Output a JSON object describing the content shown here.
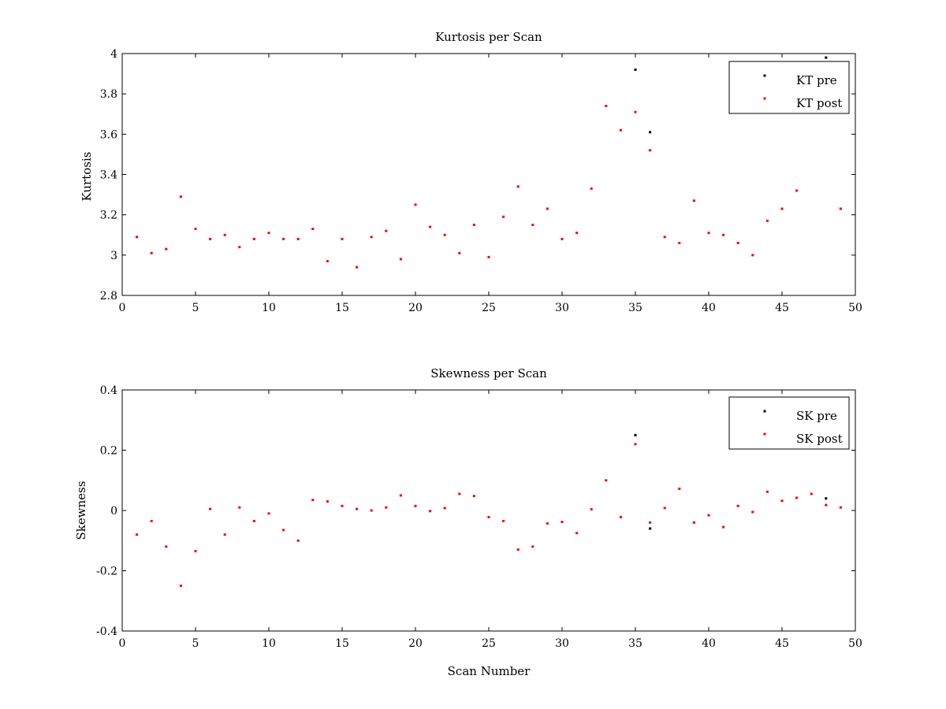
{
  "chart_data": [
    {
      "type": "scatter",
      "title": "Kurtosis per Scan",
      "xlabel": "",
      "ylabel": "Kurtosis",
      "xlim": [
        0,
        50
      ],
      "ylim": [
        2.8,
        4
      ],
      "xticks": [
        0,
        5,
        10,
        15,
        20,
        25,
        30,
        35,
        40,
        45,
        50
      ],
      "yticks": [
        2.8,
        3,
        3.2,
        3.4,
        3.6,
        3.8,
        4
      ],
      "xtick_labels": [
        "0",
        "5",
        "10",
        "15",
        "20",
        "25",
        "30",
        "35",
        "40",
        "45",
        "50"
      ],
      "ytick_labels": [
        "2.8",
        "3",
        "3.2",
        "3.4",
        "3.6",
        "3.8",
        "4"
      ],
      "grid": false,
      "legend_position": "top-right",
      "series": [
        {
          "name": "KT pre",
          "color": "#000000",
          "x": [
            35,
            36,
            48
          ],
          "y": [
            3.92,
            3.61,
            3.98
          ]
        },
        {
          "name": "KT post",
          "color": "#ff0000",
          "x": [
            1,
            2,
            3,
            4,
            5,
            6,
            7,
            8,
            9,
            10,
            11,
            12,
            13,
            14,
            15,
            16,
            17,
            18,
            19,
            20,
            21,
            22,
            23,
            24,
            25,
            26,
            27,
            28,
            29,
            30,
            31,
            32,
            33,
            34,
            35,
            36,
            37,
            38,
            39,
            40,
            41,
            42,
            43,
            44,
            45,
            46,
            49
          ],
          "y": [
            3.09,
            3.01,
            3.03,
            3.29,
            3.13,
            3.08,
            3.1,
            3.04,
            3.08,
            3.11,
            3.08,
            3.08,
            3.13,
            2.97,
            3.08,
            2.94,
            3.09,
            3.12,
            2.98,
            3.25,
            3.14,
            3.1,
            3.01,
            3.15,
            2.99,
            3.19,
            3.34,
            3.15,
            3.23,
            3.08,
            3.11,
            3.33,
            3.74,
            3.62,
            3.71,
            3.52,
            3.09,
            3.06,
            3.27,
            3.11,
            3.1,
            3.06,
            3.0,
            3.17,
            3.23,
            3.32,
            3.23
          ]
        }
      ]
    },
    {
      "type": "scatter",
      "title": "Skewness per Scan",
      "xlabel": "Scan Number",
      "ylabel": "Skewness",
      "xlim": [
        0,
        50
      ],
      "ylim": [
        -0.4,
        0.4
      ],
      "xticks": [
        0,
        5,
        10,
        15,
        20,
        25,
        30,
        35,
        40,
        45,
        50
      ],
      "yticks": [
        -0.4,
        -0.2,
        0,
        0.2,
        0.4
      ],
      "xtick_labels": [
        "0",
        "5",
        "10",
        "15",
        "20",
        "25",
        "30",
        "35",
        "40",
        "45",
        "50"
      ],
      "ytick_labels": [
        "-0.4",
        "-0.2",
        "0",
        "0.2",
        "0.4"
      ],
      "grid": false,
      "legend_position": "top-right",
      "series": [
        {
          "name": "SK pre",
          "color": "#000000",
          "x": [
            35,
            36,
            48
          ],
          "y": [
            0.25,
            -0.06,
            0.04
          ]
        },
        {
          "name": "SK post",
          "color": "#ff0000",
          "x": [
            1,
            2,
            3,
            4,
            5,
            6,
            7,
            8,
            9,
            10,
            11,
            12,
            13,
            14,
            15,
            16,
            17,
            18,
            19,
            20,
            21,
            22,
            23,
            24,
            25,
            26,
            27,
            28,
            29,
            30,
            31,
            32,
            33,
            34,
            35,
            36,
            37,
            38,
            39,
            40,
            41,
            42,
            43,
            44,
            45,
            46,
            47,
            48,
            49
          ],
          "y": [
            -0.08,
            -0.035,
            -0.12,
            -0.25,
            -0.135,
            0.005,
            -0.08,
            0.01,
            -0.035,
            -0.01,
            -0.065,
            -0.1,
            0.035,
            0.03,
            0.015,
            0.005,
            0.0,
            0.01,
            0.05,
            0.015,
            -0.002,
            0.008,
            0.055,
            0.048,
            -0.022,
            -0.035,
            -0.13,
            -0.12,
            -0.043,
            -0.038,
            -0.075,
            0.004,
            0.1,
            -0.022,
            0.22,
            -0.04,
            0.008,
            0.072,
            -0.04,
            -0.016,
            -0.055,
            0.015,
            -0.005,
            0.062,
            0.032,
            0.042,
            0.055,
            0.018,
            0.01
          ]
        }
      ]
    }
  ]
}
